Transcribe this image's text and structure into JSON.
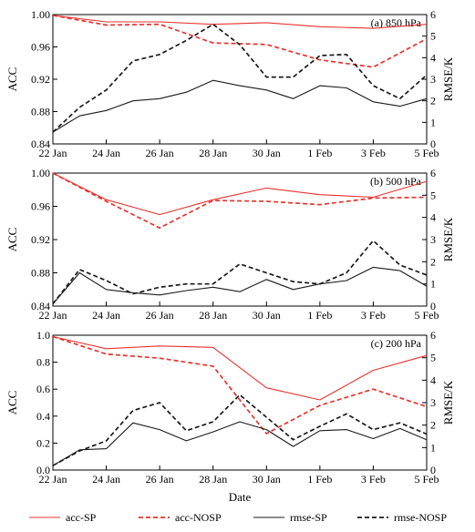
{
  "chart_data": [
    {
      "type": "line",
      "title": "(a)  850 hPa",
      "categories": [
        "22 Jan",
        "23 Jan",
        "24 Jan",
        "25 Jan",
        "26 Jan",
        "27 Jan",
        "28 Jan",
        "29 Jan",
        "30 Jan",
        "31 Jan",
        "1 Feb",
        "2 Feb",
        "3 Feb",
        "4 Feb",
        "5 Feb"
      ],
      "tick_labels": [
        "22 Jan",
        "24 Jan",
        "26 Jan",
        "28 Jan",
        "30 Jan",
        "1 Feb",
        "3 Feb",
        "5 Feb"
      ],
      "ylabel": "ACC",
      "y2label": "RMSE/K",
      "ylim": [
        0.84,
        1.0
      ],
      "yticks": [
        "0.84",
        "0.88",
        "0.92",
        "0.96",
        "1.00"
      ],
      "y2lim": [
        0,
        6
      ],
      "y2ticks": [
        "0",
        "1",
        "2",
        "3",
        "4",
        "5",
        "6"
      ],
      "series": [
        {
          "name": "acc-SP",
          "axis": "left",
          "style": "acc-sp",
          "x": [
            0,
            2,
            4,
            6,
            8,
            10,
            12,
            14
          ],
          "values": [
            0.999,
            0.991,
            0.991,
            0.988,
            0.99,
            0.985,
            0.983,
            0.988
          ]
        },
        {
          "name": "acc-NOSP",
          "axis": "left",
          "style": "acc-nosp",
          "x": [
            0,
            2,
            4,
            6,
            8,
            10,
            12,
            14
          ],
          "values": [
            0.999,
            0.987,
            0.988,
            0.965,
            0.963,
            0.944,
            0.935,
            0.97
          ]
        },
        {
          "name": "rmse-SP",
          "axis": "right",
          "style": "rmse-sp",
          "x": [
            0,
            1,
            2,
            3,
            4,
            5,
            6,
            7,
            8,
            9,
            10,
            11,
            12,
            13,
            14
          ],
          "values": [
            0.55,
            1.3,
            1.55,
            2.0,
            2.1,
            2.4,
            2.95,
            2.7,
            2.5,
            2.1,
            2.7,
            2.6,
            1.95,
            1.75,
            2.1
          ]
        },
        {
          "name": "rmse-NOSP",
          "axis": "right",
          "style": "rmse-nosp",
          "x": [
            0,
            1,
            2,
            3,
            4,
            5,
            6,
            7,
            8,
            9,
            10,
            11,
            12,
            13,
            14
          ],
          "values": [
            0.55,
            1.7,
            2.5,
            3.85,
            4.15,
            4.8,
            5.55,
            4.6,
            3.1,
            3.1,
            4.1,
            4.15,
            2.7,
            2.1,
            3.2
          ]
        }
      ]
    },
    {
      "type": "line",
      "title": "(b)  500 hPa",
      "categories": [
        "22 Jan",
        "23 Jan",
        "24 Jan",
        "25 Jan",
        "26 Jan",
        "27 Jan",
        "28 Jan",
        "29 Jan",
        "30 Jan",
        "31 Jan",
        "1 Feb",
        "2 Feb",
        "3 Feb",
        "4 Feb",
        "5 Feb"
      ],
      "tick_labels": [
        "22 Jan",
        "24 Jan",
        "26 Jan",
        "28 Jan",
        "30 Jan",
        "1 Feb",
        "3 Feb",
        "5 Feb"
      ],
      "ylabel": "ACC",
      "y2label": "RMSE/K",
      "ylim": [
        0.84,
        1.0
      ],
      "yticks": [
        "0.84",
        "0.88",
        "0.92",
        "0.96",
        "1.00"
      ],
      "y2lim": [
        0,
        6
      ],
      "y2ticks": [
        "0",
        "1",
        "2",
        "3",
        "4",
        "5",
        "6"
      ],
      "series": [
        {
          "name": "acc-SP",
          "axis": "left",
          "style": "acc-sp",
          "x": [
            0,
            2,
            4,
            6,
            8,
            10,
            12,
            14
          ],
          "values": [
            1.0,
            0.968,
            0.95,
            0.968,
            0.982,
            0.974,
            0.971,
            0.99
          ]
        },
        {
          "name": "acc-NOSP",
          "axis": "left",
          "style": "acc-nosp",
          "x": [
            0,
            2,
            4,
            6,
            8,
            10,
            12,
            14
          ],
          "values": [
            1.0,
            0.966,
            0.934,
            0.967,
            0.966,
            0.962,
            0.97,
            0.971
          ]
        },
        {
          "name": "rmse-SP",
          "axis": "right",
          "style": "rmse-sp",
          "x": [
            0,
            1,
            2,
            3,
            4,
            5,
            6,
            7,
            8,
            9,
            10,
            11,
            12,
            13,
            14
          ],
          "values": [
            0.1,
            1.5,
            0.75,
            0.6,
            0.5,
            0.7,
            0.85,
            0.65,
            1.2,
            0.75,
            1.0,
            1.15,
            1.75,
            1.6,
            0.9
          ]
        },
        {
          "name": "rmse-NOSP",
          "axis": "right",
          "style": "rmse-nosp",
          "x": [
            0,
            1,
            2,
            3,
            4,
            5,
            6,
            7,
            8,
            9,
            10,
            11,
            12,
            13,
            14
          ],
          "values": [
            0.1,
            1.65,
            1.15,
            0.55,
            0.85,
            1.0,
            1.0,
            1.9,
            1.5,
            1.1,
            1.0,
            1.5,
            2.95,
            1.85,
            1.4
          ]
        }
      ]
    },
    {
      "type": "line",
      "title": "(c)  200 hPa",
      "categories": [
        "22 Jan",
        "23 Jan",
        "24 Jan",
        "25 Jan",
        "26 Jan",
        "27 Jan",
        "28 Jan",
        "29 Jan",
        "30 Jan",
        "31 Jan",
        "1 Feb",
        "2 Feb",
        "3 Feb",
        "4 Feb",
        "5 Feb"
      ],
      "tick_labels": [
        "22 Jan",
        "24 Jan",
        "26 Jan",
        "28 Jan",
        "30 Jan",
        "1 Feb",
        "3 Feb",
        "5 Feb"
      ],
      "xlabel": "Date",
      "ylabel": "ACC",
      "y2label": "RMSE/K",
      "ylim": [
        0.0,
        1.0
      ],
      "yticks": [
        "0.0",
        "0.2",
        "0.4",
        "0.6",
        "0.8",
        "1.0"
      ],
      "y2lim": [
        0,
        6
      ],
      "y2ticks": [
        "0",
        "1",
        "2",
        "3",
        "4",
        "5",
        "6"
      ],
      "series": [
        {
          "name": "acc-SP",
          "axis": "left",
          "style": "acc-sp",
          "x": [
            0,
            2,
            4,
            6,
            8,
            10,
            12,
            14
          ],
          "values": [
            0.99,
            0.9,
            0.92,
            0.91,
            0.61,
            0.52,
            0.74,
            0.85
          ]
        },
        {
          "name": "acc-NOSP",
          "axis": "left",
          "style": "acc-nosp",
          "x": [
            0,
            2,
            4,
            6,
            8,
            10,
            12,
            14
          ],
          "values": [
            0.99,
            0.86,
            0.83,
            0.77,
            0.27,
            0.48,
            0.6,
            0.47
          ]
        },
        {
          "name": "rmse-SP",
          "axis": "right",
          "style": "rmse-sp",
          "x": [
            0,
            1,
            2,
            3,
            4,
            5,
            6,
            7,
            8,
            9,
            10,
            11,
            12,
            13,
            14
          ],
          "values": [
            0.2,
            0.9,
            0.95,
            2.1,
            1.8,
            1.3,
            1.7,
            2.15,
            1.8,
            1.05,
            1.75,
            1.8,
            1.4,
            1.85,
            1.35
          ]
        },
        {
          "name": "rmse-NOSP",
          "axis": "right",
          "style": "rmse-nosp",
          "x": [
            0,
            1,
            2,
            3,
            4,
            5,
            6,
            7,
            8,
            9,
            10,
            11,
            12,
            13,
            14
          ],
          "values": [
            0.2,
            0.85,
            1.3,
            2.65,
            3.0,
            1.75,
            2.15,
            3.35,
            2.35,
            1.35,
            1.95,
            2.5,
            1.8,
            2.1,
            1.6
          ]
        }
      ]
    }
  ],
  "legend": [
    {
      "label": "acc-SP",
      "style": "acc-sp"
    },
    {
      "label": "acc-NOSP",
      "style": "acc-nosp"
    },
    {
      "label": "rmse-SP",
      "style": "rmse-sp"
    },
    {
      "label": "rmse-NOSP",
      "style": "rmse-nosp"
    }
  ],
  "styles": {
    "acc-sp": {
      "color": "#e8322d",
      "dash": ""
    },
    "acc-nosp": {
      "color": "#e8322d",
      "dash": "5,3"
    },
    "rmse-sp": {
      "color": "#1a1a1a",
      "dash": ""
    },
    "rmse-nosp": {
      "color": "#1a1a1a",
      "dash": "5,3"
    }
  }
}
